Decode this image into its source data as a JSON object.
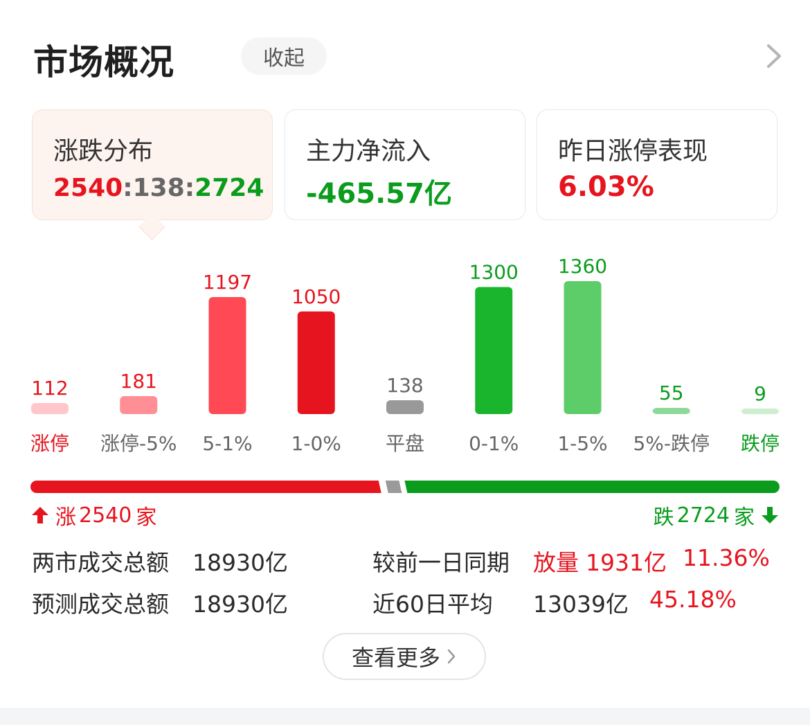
{
  "header": {
    "title": "市场概况",
    "collapse_label": "收起"
  },
  "cards": [
    {
      "label": "涨跌分布",
      "value_up": "2540",
      "sep1": ":",
      "value_flat": "138",
      "sep2": ":",
      "value_down": "2724"
    },
    {
      "label": "主力净流入",
      "value": "-465.57亿"
    },
    {
      "label": "昨日涨停表现",
      "value": "6.03%"
    }
  ],
  "colors": {
    "red": "#e6141e",
    "light_red": "#ff4a55",
    "pale_red": "#ff8f95",
    "faint_red": "#ffc7c9",
    "green": "#1ab52d",
    "light_green": "#5ccd68",
    "pale_green": "#8ed99a",
    "faint_green": "#cdeecf",
    "gray": "#999999"
  },
  "chart_data": {
    "type": "bar",
    "categories": [
      "涨停",
      "涨停-5%",
      "5-1%",
      "1-0%",
      "平盘",
      "0-1%",
      "1-5%",
      "5%-跌停",
      "跌停"
    ],
    "values": [
      112,
      181,
      1197,
      1050,
      138,
      1300,
      1360,
      55,
      9
    ],
    "value_labels": [
      "112",
      "181",
      "1197",
      "1050",
      "138",
      "1300",
      "1360",
      "55",
      "9"
    ],
    "ylim": [
      0,
      1360
    ]
  },
  "ratio": {
    "up": 2540,
    "flat": 138,
    "down": 2724
  },
  "updown": {
    "up_label": "涨",
    "up_count": "2540",
    "up_unit": "家",
    "down_label": "跌",
    "down_count": "2724",
    "down_unit": "家"
  },
  "stats": {
    "row1": {
      "label": "两市成交总额",
      "value": "18930亿",
      "cmp_label": "较前一日同期",
      "tag": "放量",
      "cmp_value": "1931亿",
      "cmp_pct": "11.36%"
    },
    "row2": {
      "label": "预测成交总额",
      "value": "18930亿",
      "cmp_label": "近60日平均",
      "cmp_value": "13039亿",
      "cmp_pct": "45.18%"
    }
  },
  "more_button": {
    "label": "查看更多"
  }
}
